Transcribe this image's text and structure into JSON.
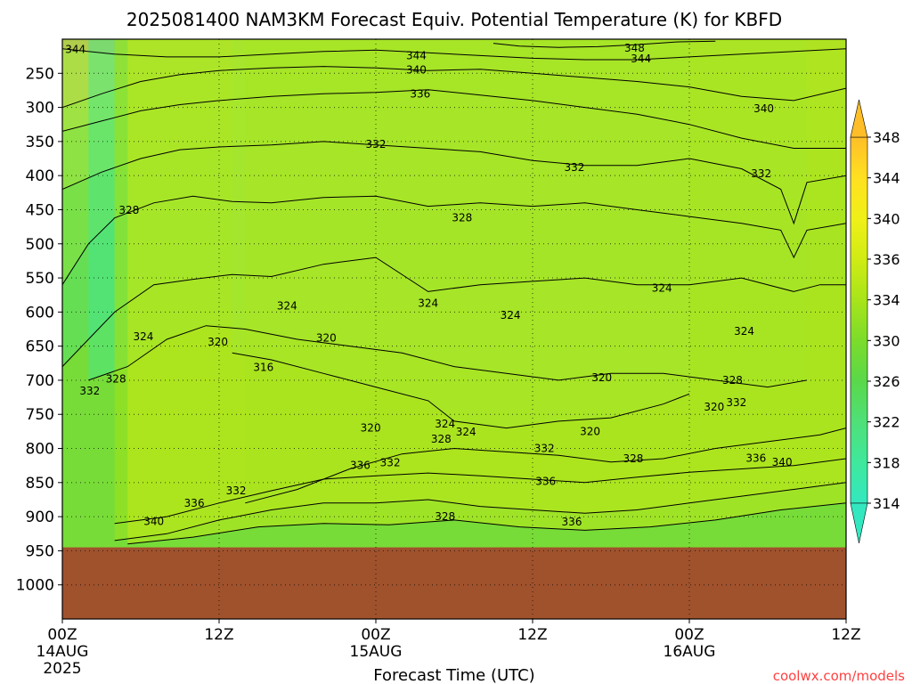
{
  "chart_data": {
    "type": "heatmap",
    "title": "2025081400 NAM3KM Forecast Equiv. Potential Temperature (K) for KBFD",
    "xlabel": "Forecast Time (UTC)",
    "ylabel": "",
    "credit": "coolwx.com/models",
    "x_ticks": [
      {
        "hour": 0,
        "line1": "00Z",
        "line2": "14AUG",
        "line3": "2025"
      },
      {
        "hour": 12,
        "line1": "12Z",
        "line2": "",
        "line3": ""
      },
      {
        "hour": 24,
        "line1": "00Z",
        "line2": "15AUG",
        "line3": ""
      },
      {
        "hour": 36,
        "line1": "12Z",
        "line2": "",
        "line3": ""
      },
      {
        "hour": 48,
        "line1": "00Z",
        "line2": "16AUG",
        "line3": ""
      },
      {
        "hour": 60,
        "line1": "12Z",
        "line2": "",
        "line3": ""
      }
    ],
    "xlim": [
      0,
      60
    ],
    "y_ticks": [
      250,
      300,
      350,
      400,
      450,
      500,
      550,
      600,
      650,
      700,
      750,
      800,
      850,
      900,
      950,
      1000
    ],
    "ylim": [
      1050,
      200
    ],
    "ground_pressure": 945,
    "colorbar": {
      "levels": [
        314,
        318,
        322,
        326,
        330,
        334,
        336,
        340,
        344,
        348
      ],
      "labels": [
        "314",
        "318",
        "322",
        "326",
        "330",
        "334",
        "336",
        "340",
        "344",
        "348"
      ],
      "colors": [
        "#33e8c0",
        "#3fe89c",
        "#4fe078",
        "#5ad84a",
        "#7cdc2a",
        "#a8e41a",
        "#d0ec14",
        "#f0f018",
        "#ffe020",
        "#ffbe28"
      ]
    },
    "ground_color": "#a0522d",
    "contour_levels": [
      316,
      320,
      324,
      328,
      332,
      336,
      340,
      344,
      348
    ],
    "contours": [
      {
        "level": 348,
        "points": [
          [
            33,
            206
          ],
          [
            35,
            210
          ],
          [
            38,
            212
          ],
          [
            41,
            211
          ],
          [
            44,
            208
          ],
          [
            47,
            204
          ],
          [
            50,
            203
          ]
        ]
      },
      {
        "level": 344,
        "points": [
          [
            0,
            214
          ],
          [
            4,
            222
          ],
          [
            8,
            226
          ],
          [
            12,
            226
          ],
          [
            16,
            222
          ],
          [
            20,
            218
          ],
          [
            24,
            216
          ],
          [
            28,
            220
          ],
          [
            32,
            224
          ],
          [
            36,
            228
          ],
          [
            40,
            230
          ],
          [
            44,
            230
          ],
          [
            48,
            226
          ],
          [
            52,
            222
          ],
          [
            56,
            218
          ],
          [
            60,
            214
          ]
        ]
      },
      {
        "level": 340,
        "points": [
          [
            0,
            300
          ],
          [
            3,
            280
          ],
          [
            6,
            262
          ],
          [
            9,
            252
          ],
          [
            12,
            246
          ],
          [
            16,
            242
          ],
          [
            20,
            240
          ],
          [
            24,
            242
          ],
          [
            28,
            246
          ],
          [
            32,
            244
          ],
          [
            36,
            250
          ],
          [
            40,
            256
          ],
          [
            44,
            262
          ],
          [
            48,
            270
          ],
          [
            52,
            284
          ],
          [
            56,
            290
          ],
          [
            60,
            272
          ]
        ]
      },
      {
        "level": 336,
        "points": [
          [
            0,
            335
          ],
          [
            3,
            320
          ],
          [
            6,
            305
          ],
          [
            9,
            296
          ],
          [
            12,
            290
          ],
          [
            16,
            284
          ],
          [
            20,
            280
          ],
          [
            24,
            278
          ],
          [
            28,
            274
          ],
          [
            32,
            282
          ],
          [
            36,
            290
          ],
          [
            40,
            300
          ],
          [
            44,
            310
          ],
          [
            48,
            325
          ],
          [
            52,
            345
          ],
          [
            56,
            360
          ],
          [
            60,
            360
          ]
        ]
      },
      {
        "level": 332,
        "points": [
          [
            0,
            420
          ],
          [
            3,
            395
          ],
          [
            6,
            375
          ],
          [
            9,
            362
          ],
          [
            12,
            358
          ],
          [
            16,
            355
          ],
          [
            20,
            350
          ],
          [
            24,
            355
          ],
          [
            28,
            360
          ],
          [
            32,
            365
          ],
          [
            36,
            378
          ],
          [
            40,
            385
          ],
          [
            44,
            385
          ],
          [
            48,
            375
          ],
          [
            52,
            390
          ],
          [
            55,
            420
          ],
          [
            56,
            470
          ],
          [
            57,
            410
          ],
          [
            60,
            400
          ]
        ]
      },
      {
        "level": 328,
        "points": [
          [
            0,
            560
          ],
          [
            2,
            500
          ],
          [
            4,
            462
          ],
          [
            7,
            440
          ],
          [
            10,
            430
          ],
          [
            13,
            438
          ],
          [
            16,
            440
          ],
          [
            20,
            432
          ],
          [
            24,
            430
          ],
          [
            28,
            445
          ],
          [
            32,
            440
          ],
          [
            36,
            445
          ],
          [
            40,
            440
          ],
          [
            44,
            450
          ],
          [
            48,
            460
          ],
          [
            52,
            470
          ],
          [
            55,
            480
          ],
          [
            56,
            520
          ],
          [
            57,
            480
          ],
          [
            60,
            470
          ]
        ]
      },
      {
        "level": 324,
        "points": [
          [
            0,
            680
          ],
          [
            2,
            640
          ],
          [
            4,
            600
          ],
          [
            7,
            560
          ],
          [
            10,
            552
          ],
          [
            13,
            545
          ],
          [
            16,
            548
          ],
          [
            20,
            530
          ],
          [
            24,
            520
          ],
          [
            28,
            570
          ],
          [
            32,
            560
          ],
          [
            36,
            555
          ],
          [
            40,
            550
          ],
          [
            44,
            560
          ],
          [
            48,
            560
          ],
          [
            52,
            550
          ],
          [
            56,
            570
          ],
          [
            58,
            560
          ],
          [
            60,
            560
          ]
        ]
      },
      {
        "level": 320,
        "points": [
          [
            2,
            700
          ],
          [
            5,
            680
          ],
          [
            8,
            640
          ],
          [
            11,
            620
          ],
          [
            14,
            625
          ],
          [
            18,
            640
          ],
          [
            22,
            650
          ],
          [
            26,
            660
          ],
          [
            30,
            680
          ],
          [
            34,
            690
          ],
          [
            38,
            700
          ],
          [
            42,
            690
          ],
          [
            46,
            690
          ],
          [
            50,
            700
          ],
          [
            54,
            710
          ],
          [
            57,
            700
          ]
        ]
      },
      {
        "level": 316,
        "points": [
          [
            13,
            660
          ],
          [
            16,
            670
          ],
          [
            20,
            690
          ],
          [
            24,
            710
          ],
          [
            28,
            730
          ],
          [
            30,
            760
          ],
          [
            34,
            770
          ],
          [
            38,
            760
          ],
          [
            42,
            755
          ],
          [
            46,
            735
          ],
          [
            48,
            720
          ]
        ]
      },
      {
        "level": 328,
        "points": [
          [
            14,
            880
          ],
          [
            18,
            860
          ],
          [
            22,
            830
          ],
          [
            26,
            808
          ],
          [
            30,
            800
          ],
          [
            34,
            805
          ],
          [
            38,
            810
          ],
          [
            42,
            820
          ],
          [
            46,
            815
          ],
          [
            50,
            800
          ],
          [
            54,
            790
          ],
          [
            58,
            780
          ],
          [
            60,
            770
          ]
        ]
      },
      {
        "level": 332,
        "points": [
          [
            4,
            910
          ],
          [
            8,
            900
          ],
          [
            12,
            880
          ],
          [
            16,
            862
          ],
          [
            20,
            845
          ],
          [
            24,
            840
          ],
          [
            28,
            836
          ],
          [
            32,
            840
          ],
          [
            36,
            845
          ],
          [
            40,
            850
          ],
          [
            44,
            842
          ],
          [
            48,
            835
          ],
          [
            52,
            830
          ],
          [
            56,
            825
          ],
          [
            60,
            815
          ]
        ]
      },
      {
        "level": 336,
        "points": [
          [
            4,
            935
          ],
          [
            8,
            925
          ],
          [
            12,
            905
          ],
          [
            16,
            890
          ],
          [
            20,
            880
          ],
          [
            24,
            880
          ],
          [
            28,
            875
          ],
          [
            32,
            885
          ],
          [
            36,
            890
          ],
          [
            40,
            895
          ],
          [
            44,
            890
          ],
          [
            48,
            880
          ],
          [
            52,
            870
          ],
          [
            56,
            860
          ],
          [
            60,
            850
          ]
        ]
      },
      {
        "level": 340,
        "points": [
          [
            5,
            940
          ],
          [
            10,
            930
          ],
          [
            15,
            915
          ],
          [
            20,
            910
          ],
          [
            25,
            912
          ],
          [
            30,
            905
          ],
          [
            35,
            915
          ],
          [
            40,
            920
          ],
          [
            45,
            915
          ],
          [
            50,
            905
          ],
          [
            55,
            890
          ],
          [
            60,
            880
          ]
        ]
      }
    ],
    "contour_labels": [
      {
        "text": "344",
        "hour": 1.0,
        "p": 215
      },
      {
        "text": "348",
        "hour": 43.8,
        "p": 213
      },
      {
        "text": "344",
        "hour": 27.1,
        "p": 224
      },
      {
        "text": "344",
        "hour": 44.3,
        "p": 229
      },
      {
        "text": "340",
        "hour": 27.1,
        "p": 245
      },
      {
        "text": "340",
        "hour": 53.7,
        "p": 302
      },
      {
        "text": "336",
        "hour": 27.4,
        "p": 280
      },
      {
        "text": "332",
        "hour": 24.0,
        "p": 354
      },
      {
        "text": "332",
        "hour": 39.2,
        "p": 388
      },
      {
        "text": "332",
        "hour": 53.5,
        "p": 397
      },
      {
        "text": "328",
        "hour": 5.1,
        "p": 451
      },
      {
        "text": "328",
        "hour": 30.6,
        "p": 462
      },
      {
        "text": "324",
        "hour": 45.9,
        "p": 565
      },
      {
        "text": "324",
        "hour": 17.2,
        "p": 591
      },
      {
        "text": "324",
        "hour": 28.0,
        "p": 587
      },
      {
        "text": "324",
        "hour": 34.3,
        "p": 605
      },
      {
        "text": "324",
        "hour": 6.2,
        "p": 636
      },
      {
        "text": "324",
        "hour": 52.2,
        "p": 628
      },
      {
        "text": "320",
        "hour": 11.9,
        "p": 644
      },
      {
        "text": "320",
        "hour": 20.2,
        "p": 638
      },
      {
        "text": "316",
        "hour": 15.4,
        "p": 681
      },
      {
        "text": "320",
        "hour": 41.3,
        "p": 696
      },
      {
        "text": "328",
        "hour": 51.3,
        "p": 700
      },
      {
        "text": "332",
        "hour": 51.6,
        "p": 733
      },
      {
        "text": "320",
        "hour": 49.9,
        "p": 739
      },
      {
        "text": "328",
        "hour": 4.1,
        "p": 698
      },
      {
        "text": "332",
        "hour": 2.1,
        "p": 716
      },
      {
        "text": "320",
        "hour": 23.6,
        "p": 770
      },
      {
        "text": "324",
        "hour": 29.3,
        "p": 764
      },
      {
        "text": "324",
        "hour": 30.9,
        "p": 776
      },
      {
        "text": "328",
        "hour": 29.0,
        "p": 786
      },
      {
        "text": "320",
        "hour": 40.4,
        "p": 775
      },
      {
        "text": "332",
        "hour": 36.9,
        "p": 800
      },
      {
        "text": "328",
        "hour": 43.7,
        "p": 815
      },
      {
        "text": "336",
        "hour": 53.1,
        "p": 814
      },
      {
        "text": "340",
        "hour": 55.1,
        "p": 820
      },
      {
        "text": "336",
        "hour": 22.8,
        "p": 825
      },
      {
        "text": "332",
        "hour": 25.1,
        "p": 821
      },
      {
        "text": "336",
        "hour": 37.0,
        "p": 848
      },
      {
        "text": "332",
        "hour": 13.3,
        "p": 862
      },
      {
        "text": "336",
        "hour": 10.1,
        "p": 880
      },
      {
        "text": "340",
        "hour": 7.0,
        "p": 907
      },
      {
        "text": "328",
        "hour": 29.3,
        "p": 900
      },
      {
        "text": "336",
        "hour": 39.0,
        "p": 908
      }
    ]
  }
}
